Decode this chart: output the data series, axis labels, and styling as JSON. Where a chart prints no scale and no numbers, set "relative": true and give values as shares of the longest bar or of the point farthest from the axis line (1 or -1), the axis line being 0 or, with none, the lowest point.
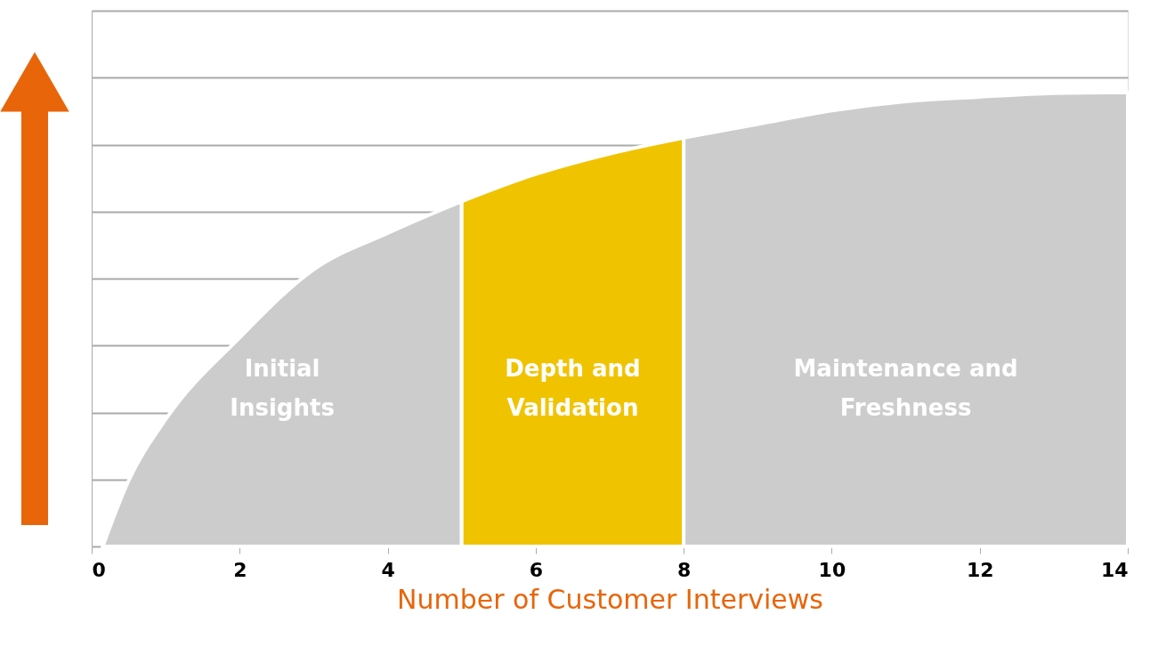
{
  "chart_data": {
    "type": "area",
    "xlabel": "Number of Customer Interviews",
    "relative": true,
    "xlim": [
      0,
      14
    ],
    "xticks": [
      0,
      2,
      4,
      6,
      8,
      10,
      12,
      14
    ],
    "grid": "y",
    "series": [
      {
        "name": "Initial Insights",
        "color": "#cccccc",
        "x": [
          0.15,
          0.5,
          1,
          2,
          3,
          4,
          5
        ],
        "values": [
          0,
          0.145,
          0.28,
          0.46,
          0.61,
          0.69,
          0.76
        ]
      },
      {
        "name": "Depth and Validation",
        "color": "#f0c300",
        "x": [
          5,
          6,
          7,
          8
        ],
        "values": [
          0.76,
          0.82,
          0.865,
          0.9
        ]
      },
      {
        "name": "Maintenance and Freshness",
        "color": "#cccccc",
        "x": [
          8,
          9,
          10,
          11,
          12,
          13,
          14
        ],
        "values": [
          0.9,
          0.93,
          0.96,
          0.98,
          0.99,
          0.998,
          1
        ]
      }
    ]
  }
}
